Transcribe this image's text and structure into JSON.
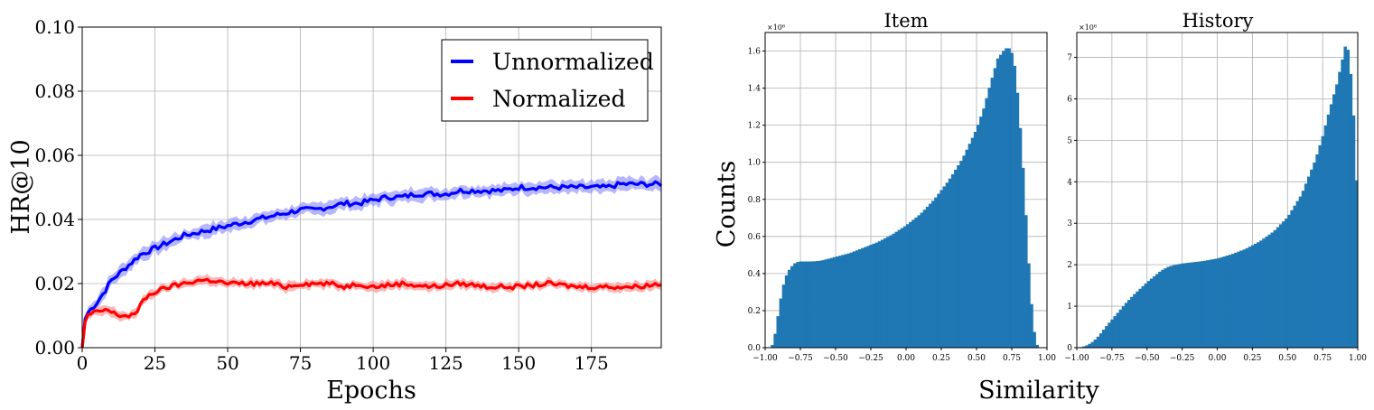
{
  "chart_data": [
    {
      "type": "line",
      "xlabel": "Epochs",
      "ylabel": "HR@10",
      "xlim": [
        0,
        199
      ],
      "ylim": [
        0.0,
        0.1
      ],
      "xticks": [
        "0",
        "25",
        "50",
        "75",
        "100",
        "125",
        "150",
        "175"
      ],
      "xtick_values": [
        0,
        25,
        50,
        75,
        100,
        125,
        150,
        175
      ],
      "yticks": [
        "0.00",
        "0.02",
        "0.04",
        "0.06",
        "0.08",
        "0.10"
      ],
      "ytick_values": [
        0.0,
        0.02,
        0.04,
        0.06,
        0.08,
        0.1
      ],
      "grid": true,
      "legend_position": "top-right",
      "series": [
        {
          "name": "Unnormalized",
          "color": "#0000ff",
          "band_color": "#9999ff",
          "x": [
            0,
            1,
            2,
            3,
            5,
            8,
            10,
            15,
            20,
            25,
            30,
            35,
            40,
            45,
            50,
            55,
            60,
            65,
            70,
            75,
            80,
            85,
            90,
            95,
            100,
            105,
            110,
            115,
            120,
            125,
            130,
            135,
            140,
            145,
            150,
            155,
            160,
            165,
            170,
            175,
            180,
            185,
            190,
            195,
            199
          ],
          "values": [
            0.0,
            0.009,
            0.011,
            0.012,
            0.014,
            0.018,
            0.021,
            0.025,
            0.029,
            0.031,
            0.033,
            0.035,
            0.036,
            0.037,
            0.038,
            0.039,
            0.04,
            0.041,
            0.042,
            0.043,
            0.043,
            0.044,
            0.045,
            0.045,
            0.046,
            0.047,
            0.047,
            0.048,
            0.048,
            0.048,
            0.049,
            0.049,
            0.049,
            0.049,
            0.05,
            0.05,
            0.05,
            0.05,
            0.05,
            0.05,
            0.05,
            0.051,
            0.051,
            0.051,
            0.051
          ],
          "band": 0.002
        },
        {
          "name": "Normalized",
          "color": "#ff0000",
          "band_color": "#ff9999",
          "x": [
            0,
            1,
            2,
            4,
            6,
            8,
            10,
            13,
            16,
            19,
            21,
            24,
            27,
            30,
            35,
            40,
            45,
            50,
            55,
            60,
            65,
            70,
            75,
            80,
            85,
            90,
            95,
            100,
            110,
            120,
            130,
            140,
            150,
            160,
            170,
            180,
            190,
            199
          ],
          "values": [
            0.0,
            0.008,
            0.01,
            0.011,
            0.011,
            0.012,
            0.011,
            0.01,
            0.01,
            0.011,
            0.015,
            0.017,
            0.018,
            0.019,
            0.02,
            0.021,
            0.021,
            0.02,
            0.02,
            0.02,
            0.02,
            0.019,
            0.02,
            0.02,
            0.02,
            0.019,
            0.02,
            0.019,
            0.02,
            0.019,
            0.02,
            0.019,
            0.019,
            0.02,
            0.019,
            0.019,
            0.019,
            0.02
          ],
          "band": 0.0015
        }
      ]
    },
    {
      "type": "bar",
      "title": "Item",
      "ylabel": "Counts",
      "scale_label": "×10⁶",
      "xlim": [
        -1.0,
        1.0
      ],
      "ylim": [
        0.0,
        1.7
      ],
      "xticks": [
        "−1.00",
        "−0.75",
        "−0.50",
        "−0.25",
        "0.00",
        "0.25",
        "0.50",
        "0.75",
        "1.00"
      ],
      "xtick_values": [
        -1.0,
        -0.75,
        -0.5,
        -0.25,
        0.0,
        0.25,
        0.5,
        0.75,
        1.0
      ],
      "yticks": [
        "0.0",
        "0.2",
        "0.4",
        "0.6",
        "0.8",
        "1.0",
        "1.2",
        "1.4",
        "1.6"
      ],
      "ytick_values": [
        0.0,
        0.2,
        0.4,
        0.6,
        0.8,
        1.0,
        1.2,
        1.4,
        1.6
      ],
      "grid": true,
      "color": "#1f77b4",
      "profile_x": [
        -1.0,
        -0.96,
        -0.94,
        -0.92,
        -0.9,
        -0.88,
        -0.86,
        -0.84,
        -0.82,
        -0.8,
        -0.78,
        -0.76,
        -0.74,
        -0.7,
        -0.65,
        -0.6,
        -0.55,
        -0.5,
        -0.4,
        -0.3,
        -0.2,
        -0.1,
        0.0,
        0.1,
        0.2,
        0.3,
        0.4,
        0.5,
        0.55,
        0.6,
        0.65,
        0.7,
        0.72,
        0.74,
        0.76,
        0.78,
        0.8,
        0.82,
        0.84,
        0.86,
        0.88,
        0.9,
        0.92,
        0.94,
        0.96,
        1.0
      ],
      "profile_y": [
        0.0,
        0.0,
        0.03,
        0.12,
        0.22,
        0.31,
        0.37,
        0.41,
        0.43,
        0.45,
        0.46,
        0.465,
        0.465,
        0.465,
        0.466,
        0.47,
        0.48,
        0.49,
        0.51,
        0.54,
        0.57,
        0.61,
        0.66,
        0.72,
        0.8,
        0.9,
        1.02,
        1.18,
        1.29,
        1.43,
        1.56,
        1.61,
        1.62,
        1.61,
        1.57,
        1.47,
        1.28,
        1.09,
        0.85,
        0.58,
        0.33,
        0.14,
        0.03,
        0.0,
        0.0,
        0.0
      ],
      "bins": 100
    },
    {
      "type": "bar",
      "title": "History",
      "xlabel": "Similarity",
      "scale_label": "×10⁶",
      "xlim": [
        -1.0,
        1.0
      ],
      "ylim": [
        0.0,
        7.6
      ],
      "xticks": [
        "−1.00",
        "−0.75",
        "−0.50",
        "−0.25",
        "0.00",
        "0.25",
        "0.50",
        "0.75",
        "1.00"
      ],
      "xtick_values": [
        -1.0,
        -0.75,
        -0.5,
        -0.25,
        0.0,
        0.25,
        0.5,
        0.75,
        1.0
      ],
      "yticks": [
        "0",
        "1",
        "2",
        "3",
        "4",
        "5",
        "6",
        "7"
      ],
      "ytick_values": [
        0,
        1,
        2,
        3,
        4,
        5,
        6,
        7
      ],
      "grid": true,
      "color": "#1f77b4",
      "profile_x": [
        -1.0,
        -0.96,
        -0.92,
        -0.88,
        -0.84,
        -0.8,
        -0.75,
        -0.7,
        -0.65,
        -0.6,
        -0.55,
        -0.5,
        -0.45,
        -0.4,
        -0.35,
        -0.3,
        -0.25,
        -0.2,
        -0.1,
        0.0,
        0.1,
        0.2,
        0.3,
        0.4,
        0.5,
        0.6,
        0.7,
        0.75,
        0.8,
        0.85,
        0.88,
        0.9,
        0.92,
        0.94,
        0.96,
        0.98,
        1.0
      ],
      "profile_y": [
        0.0,
        0.02,
        0.07,
        0.16,
        0.3,
        0.48,
        0.68,
        0.88,
        1.08,
        1.26,
        1.42,
        1.58,
        1.72,
        1.86,
        1.95,
        2.0,
        2.03,
        2.05,
        2.09,
        2.15,
        2.25,
        2.38,
        2.56,
        2.8,
        3.15,
        3.7,
        4.55,
        5.1,
        5.75,
        6.35,
        6.8,
        7.1,
        7.42,
        6.95,
        6.25,
        4.95,
        3.12
      ],
      "bins": 100
    }
  ]
}
